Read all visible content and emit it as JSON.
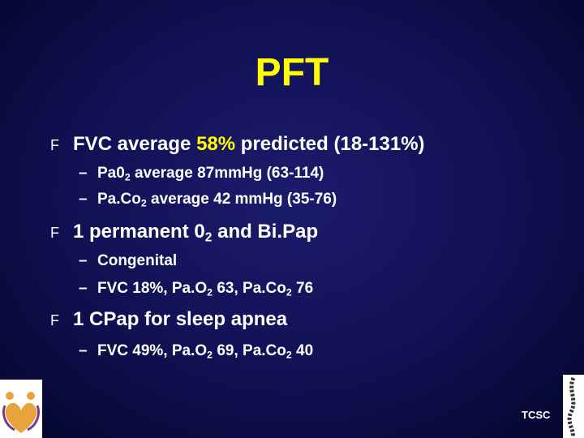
{
  "title": "PFT",
  "items": [
    {
      "marker": "F",
      "runs": [
        {
          "text": "FVC average "
        },
        {
          "em": "58%"
        },
        {
          "text": " predicted (18-131%)"
        }
      ],
      "subitems": [
        {
          "marker": "–",
          "runs": [
            {
              "text": "Pa0"
            },
            {
              "sub": "2"
            },
            {
              "text": " average 87mmHg (63-114)"
            }
          ]
        },
        {
          "marker": "–",
          "runs": [
            {
              "text": "Pa.Co"
            },
            {
              "sub": "2"
            },
            {
              "text": " average 42 mmHg (35-76)"
            }
          ]
        }
      ]
    },
    {
      "marker": "F",
      "runs": [
        {
          "text": "1 permanent 0"
        },
        {
          "sub": "2"
        },
        {
          "text": " and Bi.Pap"
        }
      ],
      "subitems": [
        {
          "marker": "–",
          "runs": [
            {
              "text": "Congenital"
            }
          ]
        },
        {
          "marker": "–",
          "runs": [
            {
              "text": "FVC 18%, Pa.O"
            },
            {
              "sub": "2"
            },
            {
              "text": " 63, Pa.Co"
            },
            {
              "sub": "2"
            },
            {
              "text": " 76"
            }
          ]
        }
      ]
    },
    {
      "marker": "F",
      "runs": [
        {
          "text": "1 CPap for sleep apnea"
        }
      ],
      "subitems": [
        {
          "marker": "–",
          "runs": [
            {
              "text": "FVC 49%, Pa.O"
            },
            {
              "sub": "2"
            },
            {
              "text": " 69, Pa.Co"
            },
            {
              "sub": "2"
            },
            {
              "text": " 40"
            }
          ]
        }
      ]
    }
  ],
  "footer": {
    "brand": "TCSC"
  }
}
